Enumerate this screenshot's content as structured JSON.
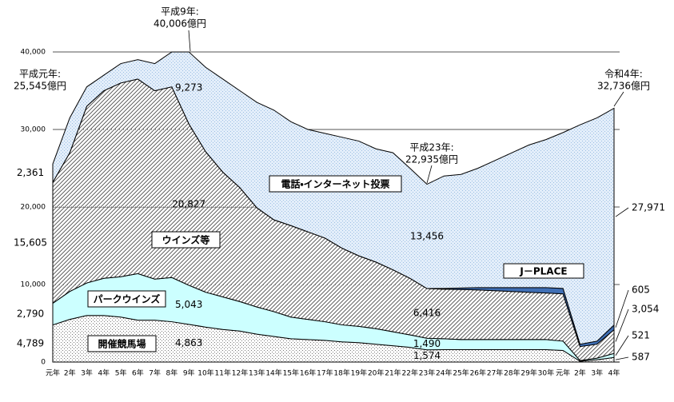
{
  "chart_data": {
    "type": "stacked_area",
    "categories": [
      "元年",
      "2年",
      "3年",
      "4年",
      "5年",
      "6年",
      "7年",
      "8年",
      "9年",
      "10年",
      "11年",
      "12年",
      "13年",
      "14年",
      "15年",
      "16年",
      "17年",
      "18年",
      "19年",
      "20年",
      "21年",
      "22年",
      "23年",
      "24年",
      "25年",
      "26年",
      "27年",
      "28年",
      "29年",
      "30年",
      "元年",
      "2年",
      "3年",
      "4年"
    ],
    "ylim": [
      0,
      40000
    ],
    "yticks": [
      0,
      {
        "value": 10000,
        "label": "10,000"
      },
      {
        "value": 20000,
        "label": "20,000"
      },
      {
        "value": 30000,
        "label": "30,000"
      },
      {
        "value": 40000,
        "label": "40,000"
      }
    ],
    "grid": true,
    "series": [
      {
        "name": "開催競馬場",
        "color": "#ffffff",
        "pattern": "dots",
        "values": [
          4789,
          5500,
          6000,
          6000,
          5800,
          5400,
          5400,
          5200,
          4863,
          4500,
          4200,
          4000,
          3600,
          3300,
          3000,
          2900,
          2800,
          2600,
          2500,
          2300,
          2100,
          1900,
          1574,
          1600,
          1600,
          1600,
          1600,
          1600,
          1600,
          1600,
          1500,
          100,
          300,
          587
        ],
        "value_labels": [
          "4,789",
          null,
          null,
          null,
          null,
          null,
          null,
          null,
          "4,863",
          null,
          null,
          null,
          null,
          null,
          null,
          null,
          null,
          null,
          null,
          null,
          null,
          null,
          "1,574",
          null,
          null,
          null,
          null,
          null,
          null,
          null,
          null,
          null,
          null,
          "587"
        ]
      },
      {
        "name": "パークウインズ",
        "color": "#ccffff",
        "pattern": "none",
        "values": [
          2790,
          3600,
          4200,
          4800,
          5200,
          6000,
          5300,
          5700,
          5043,
          4500,
          4200,
          3800,
          3500,
          3200,
          2800,
          2600,
          2400,
          2200,
          2100,
          2000,
          1800,
          1600,
          1490,
          1400,
          1300,
          1300,
          1300,
          1300,
          1300,
          1300,
          1200,
          100,
          200,
          521
        ],
        "value_labels": [
          "2,790",
          null,
          null,
          null,
          null,
          null,
          null,
          null,
          "5,043",
          null,
          null,
          null,
          null,
          null,
          null,
          null,
          null,
          null,
          null,
          null,
          null,
          null,
          "1,490",
          null,
          null,
          null,
          null,
          null,
          null,
          null,
          null,
          null,
          null,
          "521"
        ]
      },
      {
        "name": "ウインズ等",
        "color": "#ffffff",
        "pattern": "hatch",
        "values": [
          15605,
          17900,
          22800,
          24200,
          25000,
          25100,
          24300,
          24600,
          20827,
          18100,
          16100,
          14700,
          12800,
          11850,
          11800,
          11300,
          10800,
          9900,
          9100,
          8600,
          8000,
          7300,
          6416,
          6400,
          6450,
          6400,
          6300,
          6200,
          6100,
          6000,
          6100,
          1800,
          1800,
          3054
        ],
        "value_labels": [
          "15,605",
          null,
          null,
          null,
          null,
          null,
          null,
          null,
          "20,827",
          null,
          null,
          null,
          null,
          null,
          null,
          null,
          null,
          null,
          null,
          null,
          null,
          null,
          "6,416",
          null,
          null,
          null,
          null,
          null,
          null,
          null,
          null,
          null,
          null,
          "3,054"
        ]
      },
      {
        "name": "J－PLACE",
        "color": "#3f6fb5",
        "pattern": "none",
        "values": [
          0,
          0,
          0,
          0,
          0,
          0,
          0,
          0,
          0,
          0,
          0,
          0,
          0,
          0,
          0,
          0,
          0,
          0,
          0,
          0,
          0,
          0,
          0,
          100,
          200,
          300,
          400,
          500,
          600,
          700,
          700,
          300,
          400,
          605
        ],
        "value_labels": [
          null,
          null,
          null,
          null,
          null,
          null,
          null,
          null,
          null,
          null,
          null,
          null,
          null,
          null,
          null,
          null,
          null,
          null,
          null,
          null,
          null,
          null,
          null,
          null,
          null,
          null,
          null,
          null,
          null,
          null,
          null,
          null,
          null,
          "605"
        ]
      },
      {
        "name": "電話・インターネット投票",
        "color": "#e3eefa",
        "pattern": "dots",
        "values": [
          2361,
          4500,
          2500,
          2000,
          2500,
          2500,
          3500,
          4500,
          9273,
          10900,
          12000,
          12500,
          13600,
          14150,
          13400,
          13200,
          13500,
          14300,
          14800,
          14600,
          15100,
          14200,
          13456,
          14500,
          14650,
          15400,
          16400,
          17400,
          18400,
          19100,
          20100,
          28300,
          28800,
          27971
        ],
        "value_labels": [
          "2,361",
          null,
          null,
          null,
          null,
          null,
          null,
          null,
          "9,273",
          null,
          null,
          null,
          null,
          null,
          null,
          null,
          null,
          null,
          null,
          null,
          null,
          null,
          "13,456",
          null,
          null,
          null,
          null,
          null,
          null,
          null,
          null,
          null,
          null,
          "27,971"
        ]
      }
    ],
    "annotations": [
      {
        "label": "平成元年:",
        "value": "25,545億円"
      },
      {
        "label": "平成9年:",
        "value": "40,006億円"
      },
      {
        "label": "平成23年:",
        "value": "22,935億円"
      },
      {
        "label": "令和4年:",
        "value": "32,736億円"
      }
    ]
  }
}
